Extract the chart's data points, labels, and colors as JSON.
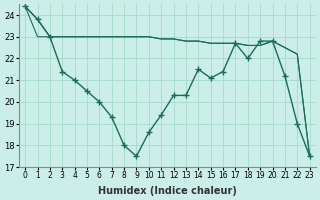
{
  "xlabel": "Humidex (Indice chaleur)",
  "ylabel": "",
  "background_color": "#cceee8",
  "grid_color": "#aaddcc",
  "line_color": "#1a6b5a",
  "xlim": [
    -0.5,
    23.5
  ],
  "ylim": [
    17,
    24.5
  ],
  "yticks": [
    17,
    18,
    19,
    20,
    21,
    22,
    23,
    24
  ],
  "xtick_labels": [
    "0",
    "1",
    "2",
    "3",
    "4",
    "5",
    "6",
    "7",
    "8",
    "9",
    "10",
    "11",
    "12",
    "13",
    "14",
    "15",
    "16",
    "17",
    "18",
    "19",
    "20",
    "21",
    "22",
    "23"
  ],
  "series1": [
    24.4,
    23.8,
    23.0,
    21.4,
    21.0,
    20.5,
    20.0,
    19.3,
    18.0,
    17.5,
    18.6,
    19.4,
    20.3,
    20.3,
    21.5,
    21.1,
    21.4,
    22.7,
    22.0,
    22.8,
    22.8,
    21.2,
    19.0,
    17.5
  ],
  "series2": [
    24.4,
    23.8,
    23.0,
    23.0,
    23.0,
    23.0,
    23.0,
    23.0,
    23.0,
    23.0,
    23.0,
    22.9,
    22.9,
    22.8,
    22.8,
    22.7,
    22.7,
    22.7,
    22.6,
    22.6,
    22.8,
    22.5,
    22.2,
    17.5
  ],
  "series3": [
    24.4,
    23.0,
    23.0,
    23.0,
    23.0,
    23.0,
    23.0,
    23.0,
    23.0,
    23.0,
    23.0,
    22.9,
    22.9,
    22.8,
    22.8,
    22.7,
    22.7,
    22.7,
    22.6,
    22.6,
    22.8,
    22.5,
    22.2,
    17.5
  ]
}
